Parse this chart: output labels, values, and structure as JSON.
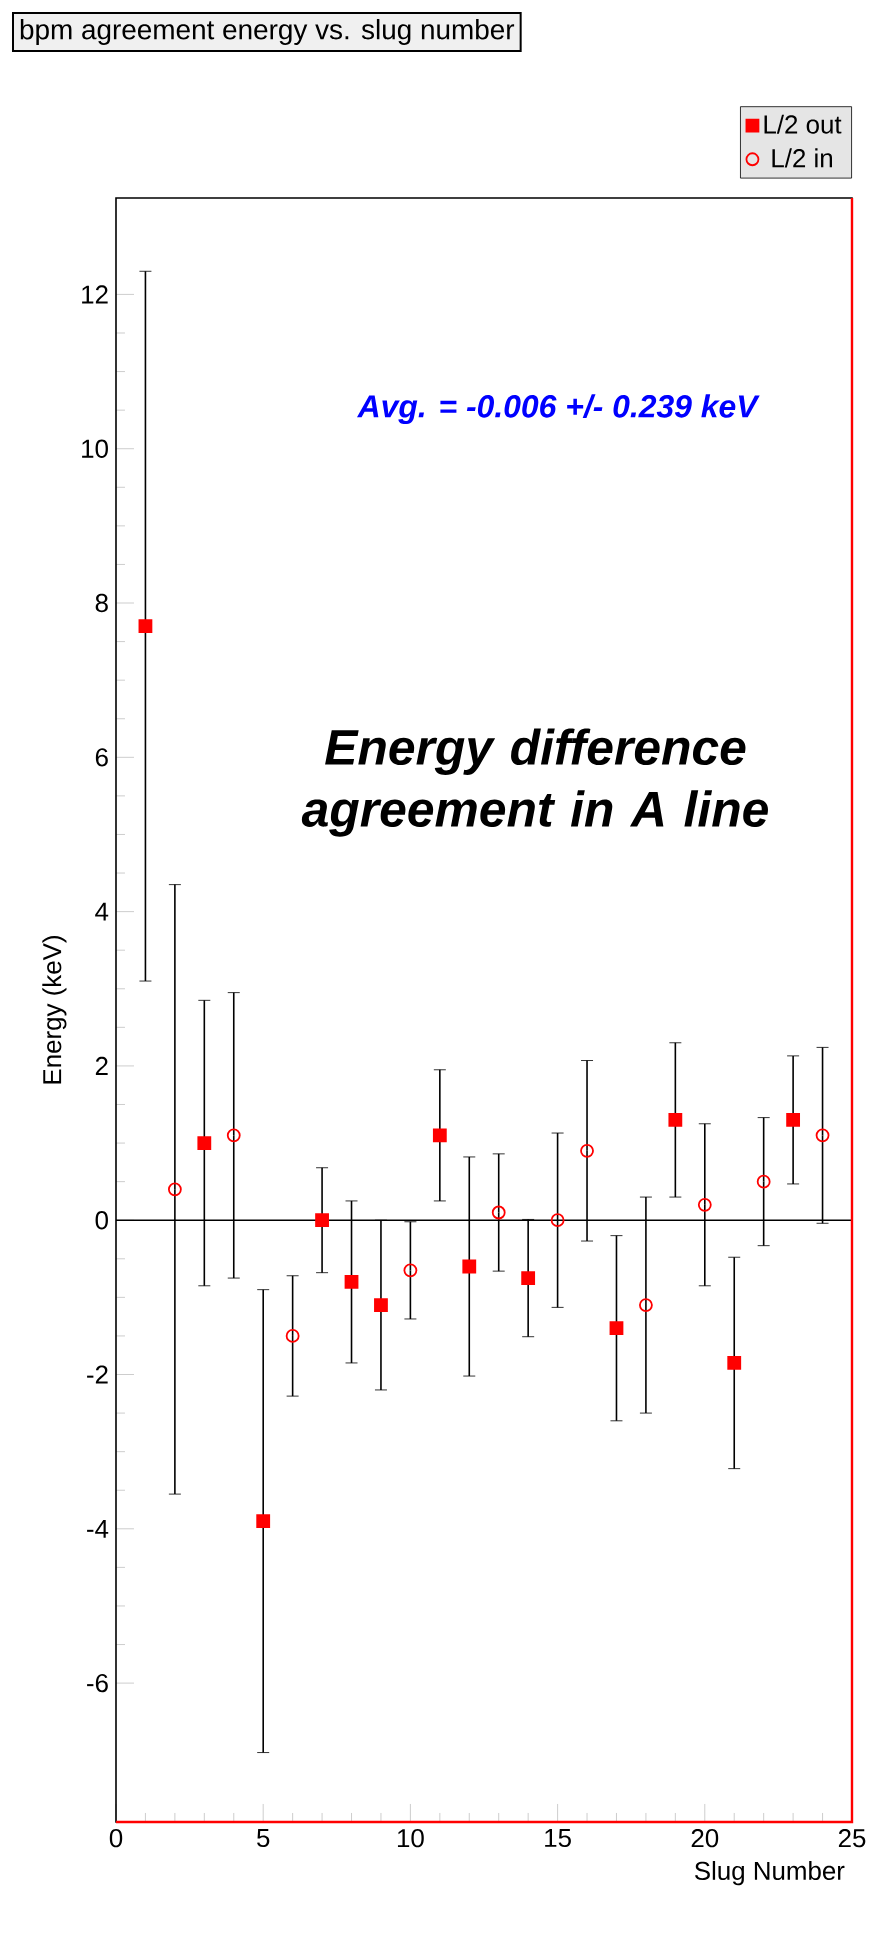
{
  "chart_data": {
    "type": "scatter",
    "title": "bpm agreement energy vs. slug number",
    "xlabel": "Slug Number",
    "ylabel": "Energy (keV)",
    "annotations": [
      "Avg. = -0.006 +/- 0.239 keV",
      "Energy difference agreement in A line"
    ],
    "xlim": [
      0,
      25
    ],
    "ylim": [
      -7.8,
      13.25
    ],
    "xticks": [
      0,
      5,
      10,
      15,
      20,
      25
    ],
    "yticks": [
      -6,
      -4,
      -2,
      0,
      2,
      4,
      6,
      8,
      10,
      12
    ],
    "legend": "top right",
    "grid": false,
    "ref_lines": [
      {
        "axis": "y",
        "value": 0,
        "color": "#000000"
      }
    ],
    "series": [
      {
        "name": "L/2 out",
        "color": "#ff0000",
        "marker": "square",
        "x": [
          1,
          3,
          5,
          7,
          8,
          9,
          11,
          12,
          14,
          17,
          19,
          21,
          23
        ],
        "values": [
          7.7,
          1.0,
          -3.9,
          0.0,
          -0.8,
          -1.1,
          1.1,
          -0.6,
          -0.75,
          -1.4,
          1.3,
          -1.85,
          1.3
        ],
        "errors": [
          4.6,
          1.85,
          3.0,
          0.68,
          1.05,
          1.1,
          0.85,
          1.42,
          0.76,
          1.2,
          1.0,
          1.37,
          0.83
        ]
      },
      {
        "name": "L/2 in",
        "color": "#ff0000",
        "marker": "circle",
        "x": [
          2,
          4,
          6,
          10,
          13,
          15,
          16,
          18,
          20,
          22,
          24
        ],
        "values": [
          0.4,
          1.1,
          -1.5,
          -0.65,
          0.1,
          0.0,
          0.9,
          -1.1,
          0.2,
          0.5,
          1.1
        ],
        "errors": [
          3.95,
          1.85,
          0.78,
          0.63,
          0.76,
          1.13,
          1.17,
          1.4,
          1.05,
          0.83,
          1.14
        ]
      }
    ]
  }
}
